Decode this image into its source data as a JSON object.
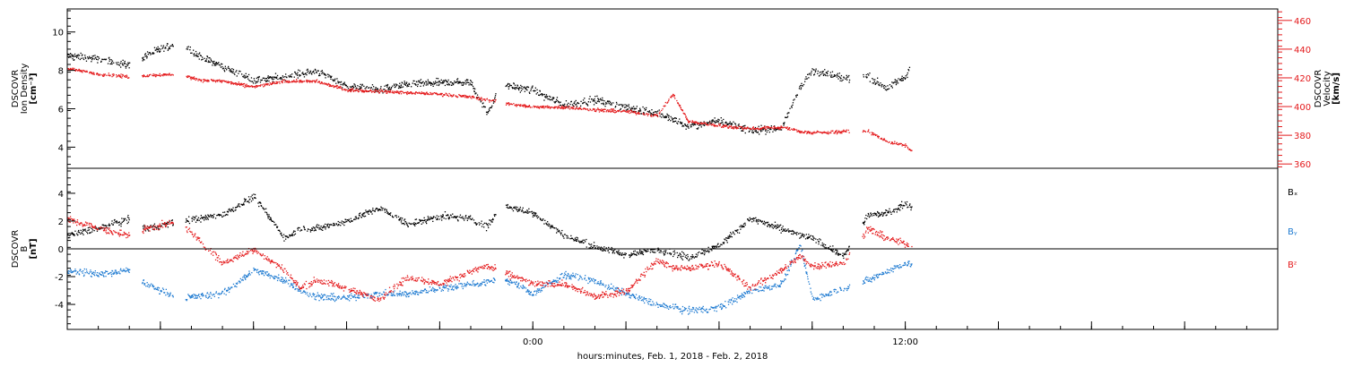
{
  "colors": {
    "black": "#000000",
    "red": "#e41a1c",
    "blue": "#1f7bd1"
  },
  "footer": {
    "xlabel": "hours:minutes, Feb.  1, 2018 - Feb.  2, 2018"
  },
  "chart_data": [
    {
      "type": "scatter",
      "panel": "top",
      "ylabel_left": [
        "DSCOVR",
        "Ion Density",
        "[cm⁻³]"
      ],
      "ylabel_right": [
        "DSCOVR",
        "Velocity",
        "[km/s]"
      ],
      "x_hours": [
        -15,
        24
      ],
      "ylim_left": [
        2.9,
        11.2
      ],
      "ylim_right": [
        357,
        468
      ],
      "yticks_left": [
        4,
        6,
        8,
        10
      ],
      "yticks_right": [
        360,
        380,
        400,
        420,
        440,
        460
      ],
      "series": [
        {
          "axis": "left",
          "color": "black",
          "x": [
            -15.0,
            -14.0,
            -13.0,
            -12.5,
            -11.4,
            -10.8,
            -10.0,
            -9.0,
            -8.0,
            -7.0,
            -6.0,
            -5.0,
            -4.0,
            -3.0,
            -2.0,
            -1.5,
            -1.0,
            0.0,
            1.0,
            2.0,
            3.0,
            4.0,
            5.0,
            6.0,
            7.0,
            8.0,
            8.6,
            9.0,
            10.0,
            10.8,
            11.4,
            12.0,
            12.2
          ],
          "y": [
            8.8,
            8.6,
            8.3,
            8.8,
            9.5,
            8.8,
            8.2,
            7.5,
            7.7,
            8.0,
            7.2,
            7.0,
            7.3,
            7.4,
            7.4,
            5.8,
            7.3,
            7.0,
            6.2,
            6.5,
            6.1,
            5.8,
            5.1,
            5.4,
            4.9,
            5.0,
            7.2,
            8.0,
            7.6,
            7.7,
            7.1,
            7.7,
            8.4
          ]
        },
        {
          "axis": "right",
          "color": "red",
          "x": [
            -15.0,
            -14.0,
            -13.0,
            -12.5,
            -11.4,
            -10.8,
            -10.0,
            -9.0,
            -8.0,
            -7.0,
            -6.0,
            -5.0,
            -4.0,
            -3.0,
            -2.0,
            -1.0,
            0.0,
            1.0,
            2.0,
            3.0,
            4.0,
            4.5,
            5.0,
            6.0,
            7.0,
            8.0,
            8.6,
            9.0,
            10.0,
            10.8,
            11.4,
            12.0,
            12.2
          ],
          "y": [
            427,
            423,
            421,
            422,
            423,
            419,
            418,
            414,
            418,
            418,
            412,
            411,
            410,
            409,
            407,
            403,
            400,
            400,
            398,
            397,
            394,
            409,
            390,
            387,
            385,
            386,
            383,
            382,
            383,
            383,
            376,
            373,
            369
          ]
        }
      ]
    },
    {
      "type": "scatter",
      "panel": "bottom",
      "ylabel_left": [
        "DSCOVR",
        "B",
        "[nT]"
      ],
      "x_hours": [
        -15,
        24
      ],
      "ylim": [
        -5.8,
        5.8
      ],
      "yticks": [
        -4,
        -2,
        0,
        2,
        4
      ],
      "zero_line": true,
      "legend": [
        "Bₓ",
        "Bᵧ",
        "Bᶻ"
      ],
      "series": [
        {
          "name": "Bx",
          "color": "black",
          "x": [
            -15.0,
            -14.0,
            -13.0,
            -12.5,
            -11.4,
            -10.0,
            -9.0,
            -8.0,
            -7.5,
            -7.0,
            -6.0,
            -5.0,
            -4.0,
            -3.0,
            -2.0,
            -1.5,
            -1.0,
            0.0,
            1.0,
            2.0,
            3.0,
            4.0,
            5.0,
            6.0,
            7.0,
            8.0,
            8.6,
            9.0,
            10.0,
            10.8,
            11.4,
            12.0,
            12.2
          ],
          "y": [
            1.0,
            1.5,
            2.2,
            1.5,
            2.0,
            2.5,
            3.8,
            0.8,
            1.5,
            1.5,
            2.0,
            3.0,
            1.8,
            2.4,
            2.2,
            1.6,
            3.2,
            2.6,
            1.0,
            0.2,
            -0.4,
            0.0,
            -0.6,
            0.3,
            2.2,
            1.5,
            1.0,
            0.8,
            -0.5,
            2.5,
            2.6,
            3.3,
            3.0
          ]
        },
        {
          "name": "By",
          "color": "blue",
          "x": [
            -15.0,
            -14.0,
            -13.0,
            -12.5,
            -11.4,
            -10.0,
            -9.0,
            -8.0,
            -7.5,
            -7.0,
            -6.0,
            -5.0,
            -4.0,
            -3.0,
            -2.0,
            -1.5,
            -1.0,
            0.0,
            1.0,
            2.0,
            3.0,
            4.0,
            5.0,
            6.0,
            7.0,
            8.0,
            8.6,
            9.0,
            10.0,
            10.8,
            11.4,
            12.0,
            12.2
          ],
          "y": [
            -1.5,
            -1.8,
            -1.5,
            -2.5,
            -3.5,
            -3.2,
            -1.5,
            -2.2,
            -3.0,
            -3.4,
            -3.5,
            -3.2,
            -3.2,
            -2.8,
            -2.5,
            -2.4,
            -2.0,
            -3.2,
            -1.8,
            -2.3,
            -3.2,
            -4.0,
            -4.4,
            -4.2,
            -3.0,
            -2.5,
            0.3,
            -3.6,
            -2.8,
            -2.2,
            -1.6,
            -1.0,
            -1.1
          ]
        },
        {
          "name": "Bz",
          "color": "red",
          "x": [
            -15.0,
            -14.0,
            -13.0,
            -12.5,
            -11.4,
            -10.0,
            -9.0,
            -8.0,
            -7.5,
            -7.0,
            -6.0,
            -5.0,
            -4.0,
            -3.0,
            -2.0,
            -1.5,
            -1.0,
            0.0,
            1.0,
            2.0,
            3.0,
            4.0,
            4.5,
            5.0,
            6.0,
            7.0,
            8.0,
            8.6,
            9.0,
            10.0,
            10.8,
            11.4,
            12.0,
            12.2
          ],
          "y": [
            2.2,
            1.5,
            1.0,
            1.5,
            2.0,
            -1.0,
            0.0,
            -1.5,
            -2.8,
            -2.2,
            -2.8,
            -3.6,
            -2.0,
            -2.5,
            -1.6,
            -1.2,
            -1.6,
            -2.5,
            -2.5,
            -3.4,
            -3.0,
            -0.8,
            -1.3,
            -1.4,
            -1.0,
            -2.8,
            -1.5,
            -0.5,
            -1.2,
            -1.0,
            1.5,
            0.8,
            0.4,
            0.2
          ]
        }
      ]
    }
  ],
  "xaxis": {
    "tick_labels": [
      "0:00",
      "12:00"
    ],
    "tick_hours": [
      0,
      12
    ]
  }
}
